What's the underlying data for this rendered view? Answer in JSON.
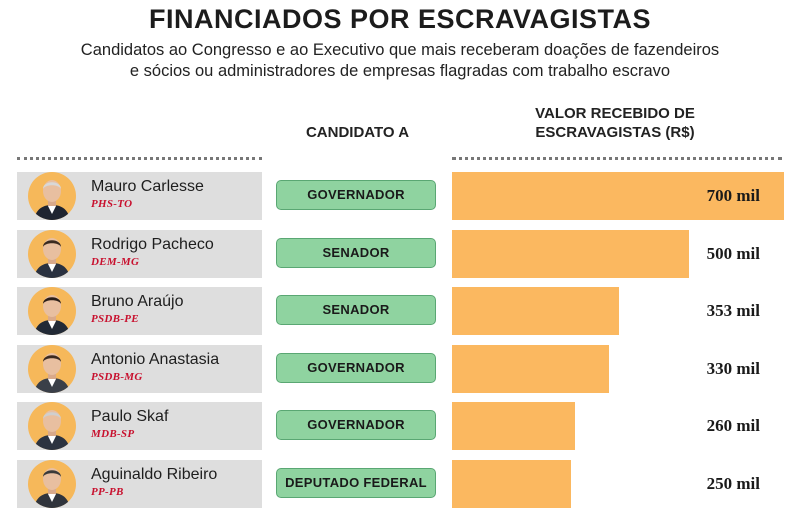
{
  "header": {
    "title": "FINANCIADOS POR ESCRAVAGISTAS",
    "subtitle_line1": "Candidatos ao Congresso e ao Executivo que mais receberam doações de fazendeiros",
    "subtitle_line2": "e sócios ou administradores de empresas flagradas com trabalho escravo"
  },
  "columns": {
    "candidate_to": "CANDIDATO A",
    "value_line1": "VALOR RECEBIDO DE",
    "value_line2": "ESCRAVAGISTAS (R$)"
  },
  "colors": {
    "bar": "#fbb860",
    "office_badge": "#8fd3a0",
    "party_text": "#c8102e",
    "avatar_bg": "#f6b85a"
  },
  "chart_data": {
    "type": "bar",
    "orientation": "horizontal",
    "xlim": [
      0,
      700
    ],
    "categories": [
      "Mauro Carlesse",
      "Rodrigo Pacheco",
      "Bruno Araújo",
      "Antonio Anastasia",
      "Paulo Skaf",
      "Aguinaldo Ribeiro"
    ],
    "values": [
      700,
      500,
      353,
      330,
      260,
      250
    ],
    "rows": [
      {
        "name": "Mauro Carlesse",
        "party": "PHS-TO",
        "office": "GOVERNADOR",
        "value": 700,
        "label": "700 mil"
      },
      {
        "name": "Rodrigo Pacheco",
        "party": "DEM-MG",
        "office": "SENADOR",
        "value": 500,
        "label": "500 mil"
      },
      {
        "name": "Bruno Araújo",
        "party": "PSDB-PE",
        "office": "SENADOR",
        "value": 353,
        "label": "353 mil"
      },
      {
        "name": "Antonio Anastasia",
        "party": "PSDB-MG",
        "office": "GOVERNADOR",
        "value": 330,
        "label": "330 mil"
      },
      {
        "name": "Paulo Skaf",
        "party": "MDB-SP",
        "office": "GOVERNADOR",
        "value": 260,
        "label": "260 mil"
      },
      {
        "name": "Aguinaldo Ribeiro",
        "party": "PP-PB",
        "office": "DEPUTADO FEDERAL",
        "value": 250,
        "label": "250 mil"
      }
    ]
  }
}
